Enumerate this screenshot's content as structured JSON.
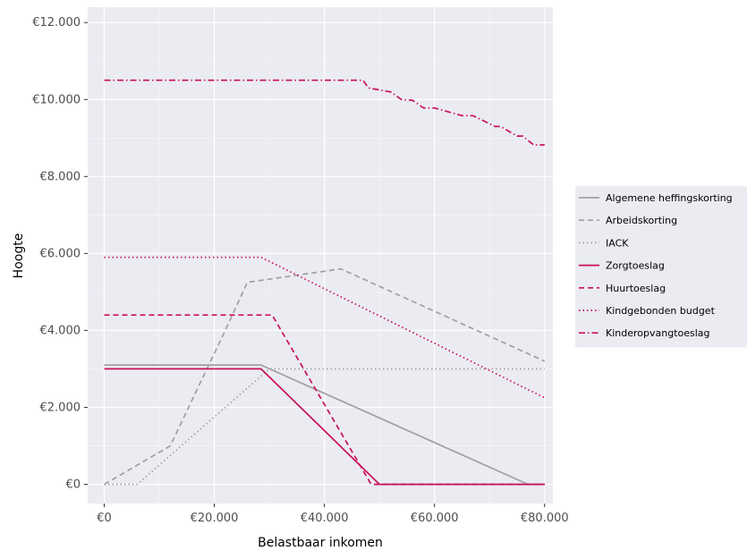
{
  "chart_data": {
    "type": "line",
    "xlabel": "Belastbaar inkomen",
    "ylabel": "Hoogte",
    "xlim": [
      -3000,
      81500
    ],
    "ylim": [
      -500,
      12400
    ],
    "x_ticks": [
      0,
      20000,
      40000,
      60000,
      80000
    ],
    "x_tick_labels": [
      "€0",
      "€20.000",
      "€40.000",
      "€60.000",
      "€80.000"
    ],
    "y_ticks": [
      0,
      2000,
      4000,
      6000,
      8000,
      10000,
      12000
    ],
    "y_tick_labels": [
      "€0",
      "€2.000",
      "€4.000",
      "€6.000",
      "€8.000",
      "€10.000",
      "€12.000"
    ],
    "grid": true,
    "background": "#ebebf2",
    "legend_position": "right",
    "series": [
      {
        "name": "Algemene heffingskorting",
        "color": "#a0a0a0",
        "dash": "solid",
        "x": [
          0,
          28500,
          77000,
          80000
        ],
        "y": [
          3100,
          3100,
          0,
          0
        ]
      },
      {
        "name": "Arbeidskorting",
        "color": "#a0a0a0",
        "dash": "dashed",
        "x": [
          0,
          12000,
          22000,
          26000,
          43000,
          80000
        ],
        "y": [
          0,
          1000,
          4000,
          5250,
          5600,
          3200
        ]
      },
      {
        "name": "IACK",
        "color": "#a0a0a0",
        "dash": "dotted",
        "x": [
          0,
          6000,
          30000,
          80000
        ],
        "y": [
          0,
          0,
          3000,
          3000
        ]
      },
      {
        "name": "Zorgtoeslag",
        "color": "#c8105a",
        "dash": "solid",
        "x": [
          0,
          28500,
          50000,
          80000
        ],
        "y": [
          3000,
          3000,
          0,
          0
        ]
      },
      {
        "name": "Huurtoeslag",
        "color": "#c8105a",
        "dash": "dashed",
        "x": [
          0,
          30500,
          48500,
          80000
        ],
        "y": [
          4400,
          4400,
          0,
          0
        ]
      },
      {
        "name": "Kindgebonden budget",
        "color": "#c8105a",
        "dash": "dotted",
        "x": [
          0,
          28500,
          80000
        ],
        "y": [
          5900,
          5900,
          2250
        ]
      },
      {
        "name": "Kinderopvangtoeslag",
        "color": "#c8105a",
        "dash": "dashdot",
        "x": [
          0,
          47000,
          48000,
          52000,
          54000,
          56000,
          58000,
          60000,
          65000,
          67000,
          71000,
          72000,
          75000,
          76000,
          78000,
          79000,
          80000
        ],
        "y": [
          10500,
          10500,
          10300,
          10200,
          10000,
          9980,
          9780,
          9780,
          9580,
          9580,
          9300,
          9300,
          9050,
          9050,
          8820,
          8820,
          8820
        ]
      }
    ]
  }
}
